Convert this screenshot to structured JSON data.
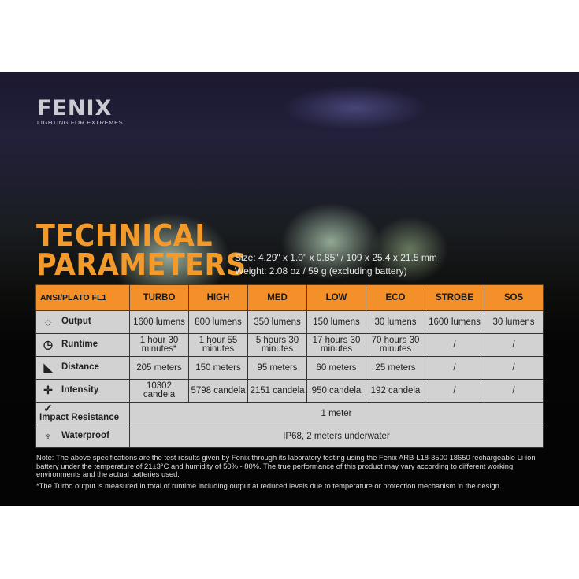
{
  "logo": {
    "brand": "FENIX",
    "tagline": "LIGHTING FOR EXTREMES"
  },
  "title": {
    "line1": "TECHNICAL",
    "line2": "PARAMETERS"
  },
  "specs": {
    "size": "Size: 4.29\" x 1.0\" x 0.85\" / 109 x 25.4 x 21.5 mm",
    "weight": "Weight: 2.08 oz / 59 g (excluding battery)"
  },
  "colors": {
    "accent": "#f39a2a",
    "header_bg": "#f4902a",
    "cell_bg": "#d2d2d2"
  },
  "table": {
    "headers": [
      "ANSI/PLATO FL1",
      "TURBO",
      "HIGH",
      "MED",
      "LOW",
      "ECO",
      "STROBE",
      "SOS"
    ],
    "rows": [
      {
        "label": "Output",
        "icon": "light-burst-icon",
        "cells": [
          "1600 lumens",
          "800 lumens",
          "350 lumens",
          "150 lumens",
          "30 lumens",
          "1600 lumens",
          "30 lumens"
        ]
      },
      {
        "label": "Runtime",
        "icon": "clock-icon",
        "cells": [
          "1 hour 30 minutes*",
          "1 hour 55 minutes",
          "5 hours 30 minutes",
          "17 hours 30 minutes",
          "70 hours 30 minutes",
          "/",
          "/"
        ]
      },
      {
        "label": "Distance",
        "icon": "beam-icon",
        "cells": [
          "205 meters",
          "150 meters",
          "95 meters",
          "60 meters",
          "25 meters",
          "/",
          "/"
        ]
      },
      {
        "label": "Intensity",
        "icon": "target-icon",
        "cells": [
          "10302 candela",
          "5798 candela",
          "2151 candela",
          "950 candela",
          "192 candela",
          "/",
          "/"
        ]
      },
      {
        "label": "Impact Resistance",
        "icon": "impact-icon",
        "value": "1 meter"
      },
      {
        "label": "Waterproof",
        "icon": "water-drop-icon",
        "value": "IP68, 2 meters underwater"
      }
    ]
  },
  "notes": {
    "note": "Note: The above specifications are the test results given by Fenix through its laboratory testing using the Fenix ARB-L18-3500 18650 rechargeable Li-ion battery under the temperature of 21±3°C and humidity of 50% - 80%. The true performance of this product may vary according to different working environments and the actual batteries used.",
    "turbo": "*The Turbo output is measured in total of runtime including output at reduced levels due to temperature or protection mechanism in the design."
  }
}
